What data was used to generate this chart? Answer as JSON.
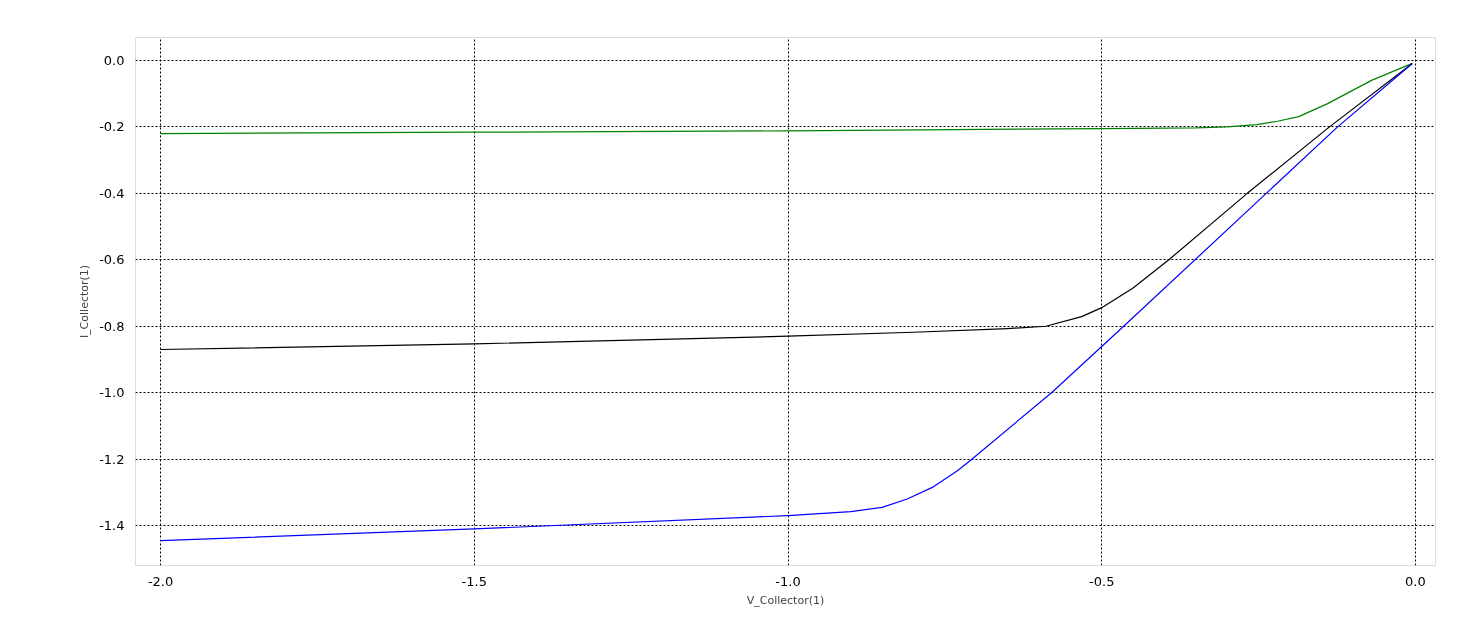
{
  "chart_data": {
    "type": "line",
    "xlabel": "V_Collector(1)",
    "ylabel": "I_Collector(1)",
    "xlim": [
      -2.04,
      0.032
    ],
    "ylim": [
      -1.52,
      0.069
    ],
    "xticks": [
      {
        "value": -2,
        "label": "-2.0"
      },
      -1.5,
      {
        "value": -1,
        "label": "-1.0"
      },
      -0.5,
      {
        "value": 0,
        "label": "0.0"
      }
    ],
    "yticks": [
      {
        "value": 0,
        "label": "0.0"
      },
      -0.2,
      -0.4,
      -0.6,
      -0.8,
      {
        "value": -1,
        "label": "-1.0"
      },
      -1.2,
      -1.4
    ],
    "grid": true,
    "line_style": "solid",
    "marker": "none",
    "series": [
      {
        "color": "#008000",
        "x": [
          -2.0,
          -1.5,
          -1.0,
          -0.5,
          -0.35,
          -0.3,
          -0.253,
          -0.22,
          -0.186,
          -0.14,
          -0.07,
          -0.005
        ],
        "values": [
          -0.22,
          -0.216,
          -0.212,
          -0.205,
          -0.203,
          -0.2,
          -0.193,
          -0.183,
          -0.169,
          -0.13,
          -0.06,
          -0.009
        ]
      },
      {
        "color": "#000000",
        "x": [
          -2.0,
          -1.5,
          -1.0,
          -0.8,
          -0.65,
          -0.589,
          -0.532,
          -0.5,
          -0.45,
          -0.393,
          -0.268,
          -0.137,
          -0.005
        ],
        "values": [
          -0.87,
          -0.853,
          -0.83,
          -0.818,
          -0.807,
          -0.8,
          -0.771,
          -0.744,
          -0.685,
          -0.6,
          -0.4,
          -0.2,
          -0.009
        ]
      },
      {
        "color": "#0000ff",
        "x": [
          -2.0,
          -1.5,
          -1.0,
          -0.9,
          -0.85,
          -0.81,
          -0.77,
          -0.73,
          -0.707,
          -0.58,
          -0.465,
          -0.124,
          -0.005
        ],
        "values": [
          -1.445,
          -1.41,
          -1.37,
          -1.358,
          -1.345,
          -1.32,
          -1.285,
          -1.235,
          -1.2,
          -1.0,
          -0.8,
          -0.2,
          -0.009
        ]
      }
    ]
  }
}
